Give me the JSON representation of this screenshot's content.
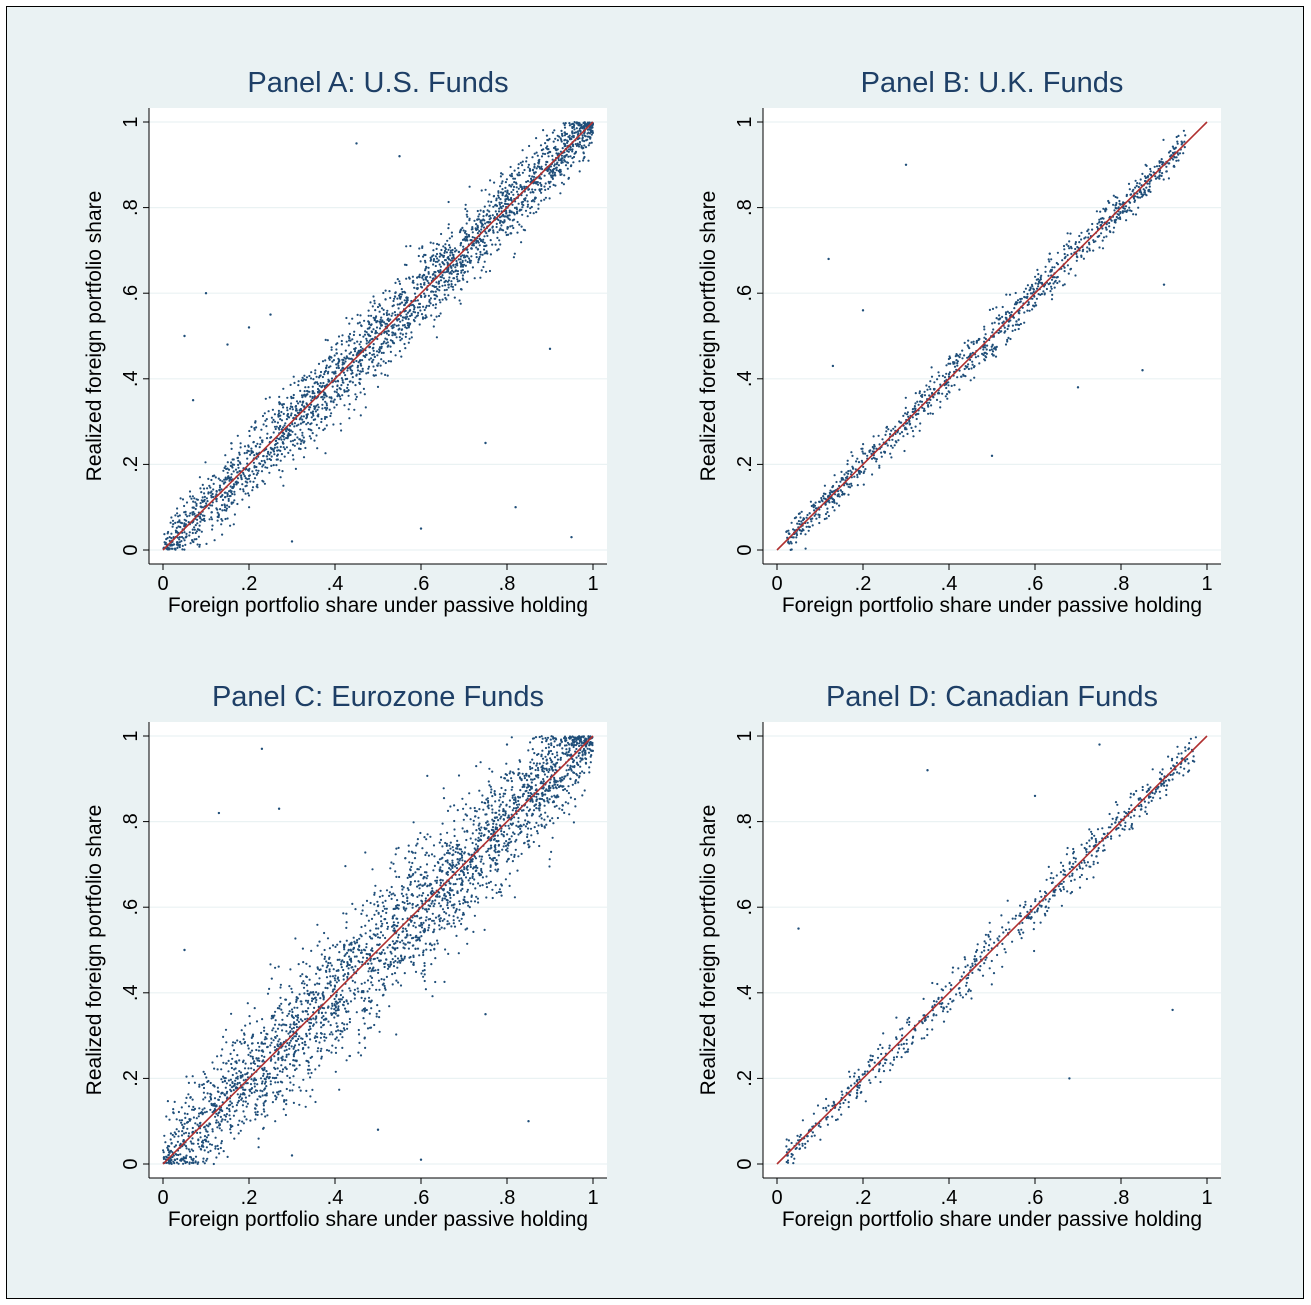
{
  "chart_data": [
    {
      "type": "scatter",
      "title": "Panel A: U.S. Funds",
      "xlabel": "Foreign portfolio share under passive holding",
      "ylabel": "Realized foreign portfolio share",
      "xlim": [
        0,
        1
      ],
      "ylim": [
        0,
        1
      ],
      "xticks": [
        "0",
        ".2",
        ".4",
        ".6",
        ".8",
        "1"
      ],
      "yticks": [
        "0",
        ".2",
        ".4",
        ".6",
        ".8",
        "1"
      ],
      "grid": true,
      "series": [
        {
          "kind": "points",
          "color": "#1f4e79",
          "summary": {
            "n_approx": 2600,
            "x_range": [
              0,
              1
            ],
            "typical_abs_deviation_from_45deg": 0.035,
            "dense": true
          },
          "outliers": [
            [
              0.1,
              0.6
            ],
            [
              0.05,
              0.5
            ],
            [
              0.15,
              0.48
            ],
            [
              0.2,
              0.52
            ],
            [
              0.25,
              0.55
            ],
            [
              0.45,
              0.95
            ],
            [
              0.6,
              0.05
            ],
            [
              0.75,
              0.25
            ],
            [
              0.82,
              0.1
            ],
            [
              0.95,
              0.03
            ],
            [
              0.55,
              0.92
            ],
            [
              0.9,
              0.47
            ],
            [
              0.07,
              0.35
            ],
            [
              0.3,
              0.02
            ]
          ]
        },
        {
          "kind": "line",
          "name": "",
          "color": "#b03030",
          "x": [
            0,
            1
          ],
          "y": [
            0,
            1
          ]
        }
      ]
    },
    {
      "type": "scatter",
      "title": "Panel B: U.K. Funds",
      "xlabel": "Foreign portfolio share under passive holding",
      "ylabel": "Realized foreign portfolio share",
      "xlim": [
        0,
        1
      ],
      "ylim": [
        0,
        1
      ],
      "xticks": [
        "0",
        ".2",
        ".4",
        ".6",
        ".8",
        "1"
      ],
      "yticks": [
        "0",
        ".2",
        ".4",
        ".6",
        ".8",
        "1"
      ],
      "grid": true,
      "series": [
        {
          "kind": "points",
          "color": "#1f4e79",
          "summary": {
            "n_approx": 1100,
            "x_range": [
              0.02,
              0.95
            ],
            "typical_abs_deviation_from_45deg": 0.018,
            "dense": false
          },
          "outliers": [
            [
              0.3,
              0.9
            ],
            [
              0.12,
              0.68
            ],
            [
              0.13,
              0.43
            ],
            [
              0.2,
              0.56
            ],
            [
              0.85,
              0.42
            ],
            [
              0.7,
              0.38
            ],
            [
              0.9,
              0.62
            ],
            [
              0.5,
              0.22
            ]
          ]
        },
        {
          "kind": "line",
          "name": "",
          "color": "#b03030",
          "x": [
            0,
            1
          ],
          "y": [
            0,
            1
          ]
        }
      ]
    },
    {
      "type": "scatter",
      "title": "Panel C: Eurozone Funds",
      "xlabel": "Foreign portfolio share under passive holding",
      "ylabel": "Realized foreign portfolio share",
      "xlim": [
        0,
        1
      ],
      "ylim": [
        0,
        1
      ],
      "xticks": [
        "0",
        ".2",
        ".4",
        ".6",
        ".8",
        "1"
      ],
      "yticks": [
        "0",
        ".2",
        ".4",
        ".6",
        ".8",
        "1"
      ],
      "grid": true,
      "series": [
        {
          "kind": "points",
          "color": "#1f4e79",
          "summary": {
            "n_approx": 3000,
            "x_range": [
              0,
              1
            ],
            "typical_abs_deviation_from_45deg": 0.06,
            "dense": true
          },
          "outliers": [
            [
              0.23,
              0.97
            ],
            [
              0.13,
              0.82
            ],
            [
              0.27,
              0.83
            ],
            [
              0.5,
              0.08
            ],
            [
              0.6,
              0.01
            ],
            [
              0.75,
              0.35
            ],
            [
              0.85,
              0.1
            ],
            [
              0.05,
              0.5
            ],
            [
              0.8,
              0.98
            ],
            [
              0.3,
              0.02
            ]
          ]
        },
        {
          "kind": "line",
          "name": "",
          "color": "#b03030",
          "x": [
            0,
            1
          ],
          "y": [
            0,
            1
          ]
        }
      ]
    },
    {
      "type": "scatter",
      "title": "Panel D: Canadian Funds",
      "xlabel": "Foreign portfolio share under passive holding",
      "ylabel": "Realized foreign portfolio share",
      "xlim": [
        0,
        1
      ],
      "ylim": [
        0,
        1
      ],
      "xticks": [
        "0",
        ".2",
        ".4",
        ".6",
        ".8",
        "1"
      ],
      "yticks": [
        "0",
        ".2",
        ".4",
        ".6",
        ".8",
        "1"
      ],
      "grid": true,
      "series": [
        {
          "kind": "points",
          "color": "#1f4e79",
          "summary": {
            "n_approx": 700,
            "x_range": [
              0.02,
              0.98
            ],
            "typical_abs_deviation_from_45deg": 0.02,
            "dense": false
          },
          "outliers": [
            [
              0.35,
              0.92
            ],
            [
              0.68,
              0.2
            ],
            [
              0.92,
              0.36
            ],
            [
              0.05,
              0.55
            ],
            [
              0.6,
              0.86
            ],
            [
              0.75,
              0.98
            ]
          ]
        },
        {
          "kind": "line",
          "name": "",
          "color": "#b03030",
          "x": [
            0,
            1
          ],
          "y": [
            0,
            1
          ]
        }
      ]
    }
  ]
}
